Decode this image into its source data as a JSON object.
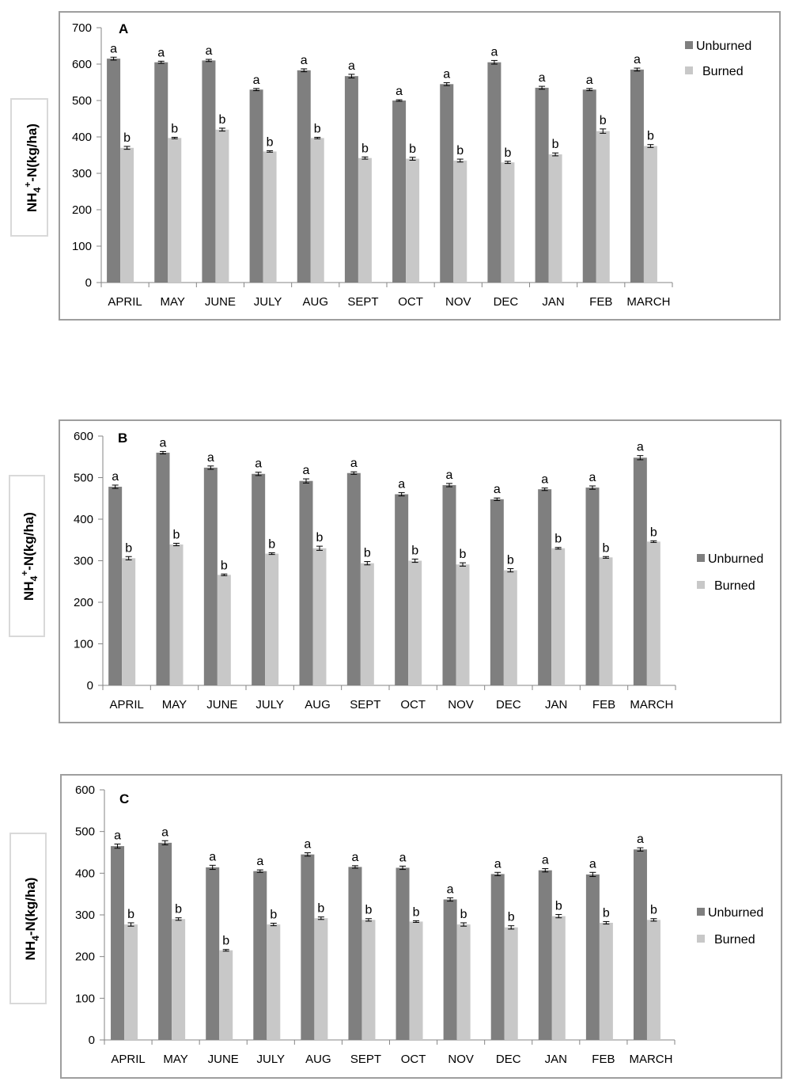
{
  "legend": {
    "unburned": "Unburned",
    "burned": "Burned"
  },
  "colors": {
    "unburned": "#7f7f7f",
    "burned": "#c8c8c8",
    "axis": "#868686",
    "frame": "#9e9e9e"
  },
  "ylabels": {
    "A": {
      "base": "NH",
      "sub": "4",
      "sup": "+",
      "rest": "-N(kg/ha)"
    },
    "B": {
      "base": "NH",
      "sub": "4",
      "sup": "+",
      "rest": "-N(kg/ha)"
    },
    "C": {
      "base": "NH",
      "sub": "4",
      "sup": "",
      "rest": "-N(kg/ha)"
    }
  },
  "chart_data": [
    {
      "type": "bar",
      "panel_label": "A",
      "categories": [
        "APRIL",
        "MAY",
        "JUNE",
        "JULY",
        "AUG",
        "SEPT",
        "OCT",
        "NOV",
        "DEC",
        "JAN",
        "FEB",
        "MARCH"
      ],
      "series": [
        {
          "name": "Unburned",
          "values": [
            615,
            605,
            610,
            530,
            583,
            567,
            500,
            545,
            605,
            535,
            530,
            585
          ],
          "errors": [
            4,
            3,
            3,
            3,
            4,
            5,
            2,
            4,
            5,
            4,
            3,
            4
          ],
          "letters": [
            "a",
            "a",
            "a",
            "a",
            "a",
            "a",
            "a",
            "a",
            "a",
            "a",
            "a",
            "a"
          ]
        },
        {
          "name": "Burned",
          "values": [
            370,
            397,
            420,
            360,
            397,
            342,
            340,
            335,
            330,
            352,
            416,
            375
          ],
          "errors": [
            4,
            2,
            4,
            2,
            2,
            3,
            4,
            4,
            3,
            4,
            6,
            4
          ],
          "letters": [
            "b",
            "b",
            "b",
            "b",
            "b",
            "b",
            "b",
            "b",
            "b",
            "b",
            "b",
            "b"
          ]
        }
      ],
      "ylim": [
        0,
        700
      ],
      "yticks": [
        0,
        100,
        200,
        300,
        400,
        500,
        600,
        700
      ],
      "legend_position": "right-top"
    },
    {
      "type": "bar",
      "panel_label": "B",
      "categories": [
        "APRIL",
        "MAY",
        "JUNE",
        "JULY",
        "AUG",
        "SEPT",
        "OCT",
        "NOV",
        "DEC",
        "JAN",
        "FEB",
        "MARCH"
      ],
      "series": [
        {
          "name": "Unburned",
          "values": [
            478,
            560,
            524,
            509,
            492,
            511,
            460,
            482,
            448,
            472,
            476,
            548
          ],
          "errors": [
            4,
            3,
            4,
            4,
            5,
            3,
            4,
            4,
            3,
            3,
            4,
            5
          ],
          "letters": [
            "a",
            "a",
            "a",
            "a",
            "a",
            "a",
            "a",
            "a",
            "a",
            "a",
            "a",
            "a"
          ]
        },
        {
          "name": "Burned",
          "values": [
            306,
            339,
            266,
            317,
            330,
            294,
            300,
            291,
            277,
            330,
            308,
            346
          ],
          "errors": [
            4,
            3,
            2,
            2,
            5,
            4,
            4,
            4,
            4,
            2,
            2,
            2
          ],
          "letters": [
            "b",
            "b",
            "b",
            "b",
            "b",
            "b",
            "b",
            "b",
            "b",
            "b",
            "b",
            "b"
          ]
        }
      ],
      "ylim": [
        0,
        600
      ],
      "yticks": [
        0,
        100,
        200,
        300,
        400,
        500,
        600
      ],
      "legend_position": "right-middle"
    },
    {
      "type": "bar",
      "panel_label": "C",
      "categories": [
        "APRIL",
        "MAY",
        "JUNE",
        "JULY",
        "AUG",
        "SEPT",
        "OCT",
        "NOV",
        "DEC",
        "JAN",
        "FEB",
        "MARCH"
      ],
      "series": [
        {
          "name": "Unburned",
          "values": [
            465,
            473,
            414,
            405,
            445,
            415,
            413,
            337,
            398,
            407,
            397,
            457
          ],
          "errors": [
            5,
            5,
            5,
            3,
            4,
            3,
            4,
            4,
            4,
            4,
            5,
            4
          ],
          "letters": [
            "a",
            "a",
            "a",
            "a",
            "a",
            "a",
            "a",
            "a",
            "a",
            "a",
            "a",
            "a"
          ]
        },
        {
          "name": "Burned",
          "values": [
            277,
            290,
            215,
            277,
            292,
            288,
            284,
            277,
            270,
            297,
            281,
            288
          ],
          "errors": [
            4,
            3,
            2,
            3,
            3,
            3,
            2,
            4,
            4,
            4,
            3,
            3
          ],
          "letters": [
            "b",
            "b",
            "b",
            "b",
            "b",
            "b",
            "b",
            "b",
            "b",
            "b",
            "b",
            "b"
          ]
        }
      ],
      "ylim": [
        0,
        600
      ],
      "yticks": [
        0,
        100,
        200,
        300,
        400,
        500,
        600
      ],
      "legend_position": "right-middle"
    }
  ]
}
